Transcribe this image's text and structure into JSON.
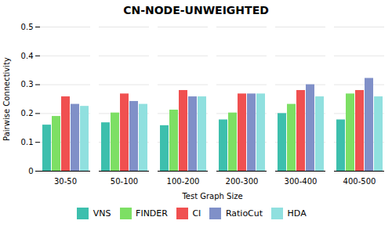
{
  "chart_data": {
    "type": "bar",
    "title": "CN-NODE-UNWEIGHTED",
    "xlabel": "Test Graph Size",
    "ylabel": "Pairwise Connectivity",
    "categories": [
      "30-50",
      "50-100",
      "100-200",
      "200-300",
      "300-400",
      "400-500"
    ],
    "series": [
      {
        "name": "VNS",
        "color": "#3dbfad",
        "values": [
          0.16,
          0.168,
          0.158,
          0.178,
          0.2,
          0.178
        ]
      },
      {
        "name": "FINDER",
        "color": "#7ddf64",
        "values": [
          0.19,
          0.202,
          0.212,
          0.202,
          0.232,
          0.268
        ]
      },
      {
        "name": "CI",
        "color": "#f05050",
        "values": [
          0.258,
          0.268,
          0.28,
          0.268,
          0.28,
          0.28
        ]
      },
      {
        "name": "RatioCut",
        "color": "#8090c8",
        "values": [
          0.232,
          0.242,
          0.258,
          0.268,
          0.3,
          0.322
        ]
      },
      {
        "name": "HDA",
        "color": "#90e0df",
        "values": [
          0.225,
          0.232,
          0.258,
          0.268,
          0.258,
          0.258
        ]
      }
    ],
    "ylim": [
      0,
      0.5
    ],
    "yticks": [
      0,
      0.1,
      0.2,
      0.3,
      0.4,
      0.5
    ],
    "grid": true,
    "legend": "bottom"
  }
}
